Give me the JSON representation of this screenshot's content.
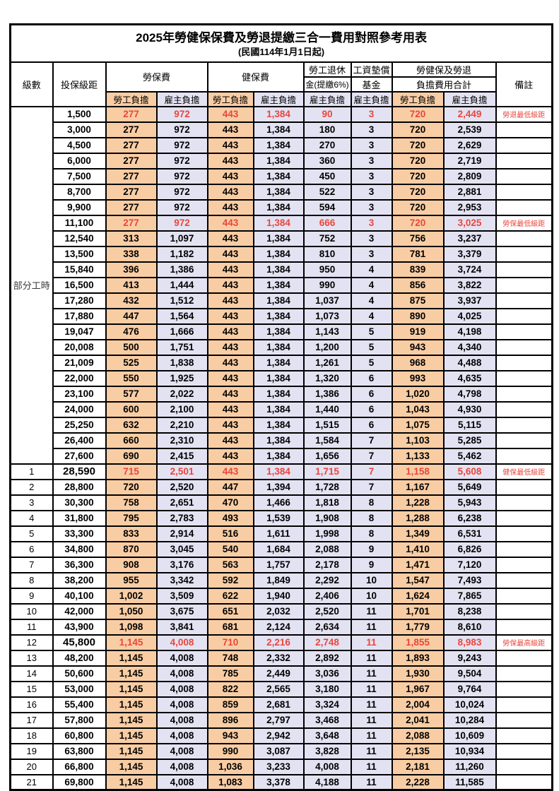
{
  "title": "2025年勞健保保費及勞退提繳三合一費用對照參考用表",
  "subtitle": "(民國114年1月1日起)",
  "columns": {
    "level": "級數",
    "bracket": "投保級距",
    "labor_insurance": "勞保費",
    "health_insurance": "健保費",
    "pension_line1": "勞工退休",
    "pension_line2": "金(提繳6%)",
    "wage_fund_line1": "工資墊償",
    "wage_fund_line2": "基金",
    "total_line1": "勞健保及勞退",
    "total_line2": "負擔費用合計",
    "remark": "備註",
    "employee_share": "勞工負擔",
    "employer_share": "雇主負擔"
  },
  "part_time_label": "部分工時",
  "part_time_rowspan": 23,
  "colors": {
    "employee_bg": "#F9CDA4",
    "employer_bg": "#E3E2F2",
    "highlight_red": "#E8463C",
    "border": "#000000"
  },
  "rows": [
    {
      "level": "",
      "bracket": "1,500",
      "values": [
        "277",
        "972",
        "443",
        "1,384",
        "90",
        "3",
        "720",
        "2,449"
      ],
      "note": "勞退最低級距",
      "red": true,
      "bold": false
    },
    {
      "level": "",
      "bracket": "3,000",
      "values": [
        "277",
        "972",
        "443",
        "1,384",
        "180",
        "3",
        "720",
        "2,539"
      ],
      "note": "",
      "red": false,
      "bold": false
    },
    {
      "level": "",
      "bracket": "4,500",
      "values": [
        "277",
        "972",
        "443",
        "1,384",
        "270",
        "3",
        "720",
        "2,629"
      ],
      "note": "",
      "red": false,
      "bold": false
    },
    {
      "level": "",
      "bracket": "6,000",
      "values": [
        "277",
        "972",
        "443",
        "1,384",
        "360",
        "3",
        "720",
        "2,719"
      ],
      "note": "",
      "red": false,
      "bold": false
    },
    {
      "level": "",
      "bracket": "7,500",
      "values": [
        "277",
        "972",
        "443",
        "1,384",
        "450",
        "3",
        "720",
        "2,809"
      ],
      "note": "",
      "red": false,
      "bold": false
    },
    {
      "level": "",
      "bracket": "8,700",
      "values": [
        "277",
        "972",
        "443",
        "1,384",
        "522",
        "3",
        "720",
        "2,881"
      ],
      "note": "",
      "red": false,
      "bold": false
    },
    {
      "level": "",
      "bracket": "9,900",
      "values": [
        "277",
        "972",
        "443",
        "1,384",
        "594",
        "3",
        "720",
        "2,953"
      ],
      "note": "",
      "red": false,
      "bold": false
    },
    {
      "level": "",
      "bracket": "11,100",
      "values": [
        "277",
        "972",
        "443",
        "1,384",
        "666",
        "3",
        "720",
        "3,025"
      ],
      "note": "勞保最低級距",
      "red": true,
      "bold": false
    },
    {
      "level": "",
      "bracket": "12,540",
      "values": [
        "313",
        "1,097",
        "443",
        "1,384",
        "752",
        "3",
        "756",
        "3,237"
      ],
      "note": "",
      "red": false,
      "bold": false
    },
    {
      "level": "",
      "bracket": "13,500",
      "values": [
        "338",
        "1,182",
        "443",
        "1,384",
        "810",
        "3",
        "781",
        "3,379"
      ],
      "note": "",
      "red": false,
      "bold": false
    },
    {
      "level": "",
      "bracket": "15,840",
      "values": [
        "396",
        "1,386",
        "443",
        "1,384",
        "950",
        "4",
        "839",
        "3,724"
      ],
      "note": "",
      "red": false,
      "bold": false
    },
    {
      "level": "",
      "bracket": "16,500",
      "values": [
        "413",
        "1,444",
        "443",
        "1,384",
        "990",
        "4",
        "856",
        "3,822"
      ],
      "note": "",
      "red": false,
      "bold": false
    },
    {
      "level": "",
      "bracket": "17,280",
      "values": [
        "432",
        "1,512",
        "443",
        "1,384",
        "1,037",
        "4",
        "875",
        "3,937"
      ],
      "note": "",
      "red": false,
      "bold": false
    },
    {
      "level": "",
      "bracket": "17,880",
      "values": [
        "447",
        "1,564",
        "443",
        "1,384",
        "1,073",
        "4",
        "890",
        "4,025"
      ],
      "note": "",
      "red": false,
      "bold": false
    },
    {
      "level": "",
      "bracket": "19,047",
      "values": [
        "476",
        "1,666",
        "443",
        "1,384",
        "1,143",
        "5",
        "919",
        "4,198"
      ],
      "note": "",
      "red": false,
      "bold": false
    },
    {
      "level": "",
      "bracket": "20,008",
      "values": [
        "500",
        "1,751",
        "443",
        "1,384",
        "1,200",
        "5",
        "943",
        "4,340"
      ],
      "note": "",
      "red": false,
      "bold": false
    },
    {
      "level": "",
      "bracket": "21,009",
      "values": [
        "525",
        "1,838",
        "443",
        "1,384",
        "1,261",
        "5",
        "968",
        "4,488"
      ],
      "note": "",
      "red": false,
      "bold": false
    },
    {
      "level": "",
      "bracket": "22,000",
      "values": [
        "550",
        "1,925",
        "443",
        "1,384",
        "1,320",
        "6",
        "993",
        "4,635"
      ],
      "note": "",
      "red": false,
      "bold": false
    },
    {
      "level": "",
      "bracket": "23,100",
      "values": [
        "577",
        "2,022",
        "443",
        "1,384",
        "1,386",
        "6",
        "1,020",
        "4,798"
      ],
      "note": "",
      "red": false,
      "bold": false
    },
    {
      "level": "",
      "bracket": "24,000",
      "values": [
        "600",
        "2,100",
        "443",
        "1,384",
        "1,440",
        "6",
        "1,043",
        "4,930"
      ],
      "note": "",
      "red": false,
      "bold": false
    },
    {
      "level": "",
      "bracket": "25,250",
      "values": [
        "632",
        "2,210",
        "443",
        "1,384",
        "1,515",
        "6",
        "1,075",
        "5,115"
      ],
      "note": "",
      "red": false,
      "bold": false
    },
    {
      "level": "",
      "bracket": "26,400",
      "values": [
        "660",
        "2,310",
        "443",
        "1,384",
        "1,584",
        "7",
        "1,103",
        "5,285"
      ],
      "note": "",
      "red": false,
      "bold": false
    },
    {
      "level": "",
      "bracket": "27,600",
      "values": [
        "690",
        "2,415",
        "443",
        "1,384",
        "1,656",
        "7",
        "1,133",
        "5,462"
      ],
      "note": "",
      "red": false,
      "bold": false
    },
    {
      "level": "1",
      "bracket": "28,590",
      "values": [
        "715",
        "2,501",
        "443",
        "1,384",
        "1,715",
        "7",
        "1,158",
        "5,608"
      ],
      "note": "健保最低級距",
      "red": true,
      "bold": true
    },
    {
      "level": "2",
      "bracket": "28,800",
      "values": [
        "720",
        "2,520",
        "447",
        "1,394",
        "1,728",
        "7",
        "1,167",
        "5,649"
      ],
      "note": "",
      "red": false,
      "bold": false
    },
    {
      "level": "3",
      "bracket": "30,300",
      "values": [
        "758",
        "2,651",
        "470",
        "1,466",
        "1,818",
        "8",
        "1,228",
        "5,943"
      ],
      "note": "",
      "red": false,
      "bold": false
    },
    {
      "level": "4",
      "bracket": "31,800",
      "values": [
        "795",
        "2,783",
        "493",
        "1,539",
        "1,908",
        "8",
        "1,288",
        "6,238"
      ],
      "note": "",
      "red": false,
      "bold": false
    },
    {
      "level": "5",
      "bracket": "33,300",
      "values": [
        "833",
        "2,914",
        "516",
        "1,611",
        "1,998",
        "8",
        "1,349",
        "6,531"
      ],
      "note": "",
      "red": false,
      "bold": false
    },
    {
      "level": "6",
      "bracket": "34,800",
      "values": [
        "870",
        "3,045",
        "540",
        "1,684",
        "2,088",
        "9",
        "1,410",
        "6,826"
      ],
      "note": "",
      "red": false,
      "bold": false
    },
    {
      "level": "7",
      "bracket": "36,300",
      "values": [
        "908",
        "3,176",
        "563",
        "1,757",
        "2,178",
        "9",
        "1,471",
        "7,120"
      ],
      "note": "",
      "red": false,
      "bold": false
    },
    {
      "level": "8",
      "bracket": "38,200",
      "values": [
        "955",
        "3,342",
        "592",
        "1,849",
        "2,292",
        "10",
        "1,547",
        "7,493"
      ],
      "note": "",
      "red": false,
      "bold": false
    },
    {
      "level": "9",
      "bracket": "40,100",
      "values": [
        "1,002",
        "3,509",
        "622",
        "1,940",
        "2,406",
        "10",
        "1,624",
        "7,865"
      ],
      "note": "",
      "red": false,
      "bold": false
    },
    {
      "level": "10",
      "bracket": "42,000",
      "values": [
        "1,050",
        "3,675",
        "651",
        "2,032",
        "2,520",
        "11",
        "1,701",
        "8,238"
      ],
      "note": "",
      "red": false,
      "bold": false
    },
    {
      "level": "11",
      "bracket": "43,900",
      "values": [
        "1,098",
        "3,841",
        "681",
        "2,124",
        "2,634",
        "11",
        "1,779",
        "8,610"
      ],
      "note": "",
      "red": false,
      "bold": false
    },
    {
      "level": "12",
      "bracket": "45,800",
      "values": [
        "1,145",
        "4,008",
        "710",
        "2,216",
        "2,748",
        "11",
        "1,855",
        "8,983"
      ],
      "note": "勞保最高級距",
      "red": true,
      "bold": true
    },
    {
      "level": "13",
      "bracket": "48,200",
      "values": [
        "1,145",
        "4,008",
        "748",
        "2,332",
        "2,892",
        "11",
        "1,893",
        "9,243"
      ],
      "note": "",
      "red": false,
      "bold": false
    },
    {
      "level": "14",
      "bracket": "50,600",
      "values": [
        "1,145",
        "4,008",
        "785",
        "2,449",
        "3,036",
        "11",
        "1,930",
        "9,504"
      ],
      "note": "",
      "red": false,
      "bold": false
    },
    {
      "level": "15",
      "bracket": "53,000",
      "values": [
        "1,145",
        "4,008",
        "822",
        "2,565",
        "3,180",
        "11",
        "1,967",
        "9,764"
      ],
      "note": "",
      "red": false,
      "bold": false
    },
    {
      "level": "16",
      "bracket": "55,400",
      "values": [
        "1,145",
        "4,008",
        "859",
        "2,681",
        "3,324",
        "11",
        "2,004",
        "10,024"
      ],
      "note": "",
      "red": false,
      "bold": false
    },
    {
      "level": "17",
      "bracket": "57,800",
      "values": [
        "1,145",
        "4,008",
        "896",
        "2,797",
        "3,468",
        "11",
        "2,041",
        "10,284"
      ],
      "note": "",
      "red": false,
      "bold": false
    },
    {
      "level": "18",
      "bracket": "60,800",
      "values": [
        "1,145",
        "4,008",
        "943",
        "2,942",
        "3,648",
        "11",
        "2,088",
        "10,609"
      ],
      "note": "",
      "red": false,
      "bold": false
    },
    {
      "level": "19",
      "bracket": "63,800",
      "values": [
        "1,145",
        "4,008",
        "990",
        "3,087",
        "3,828",
        "11",
        "2,135",
        "10,934"
      ],
      "note": "",
      "red": false,
      "bold": false
    },
    {
      "level": "20",
      "bracket": "66,800",
      "values": [
        "1,145",
        "4,008",
        "1,036",
        "3,233",
        "4,008",
        "11",
        "2,181",
        "11,260"
      ],
      "note": "",
      "red": false,
      "bold": false
    },
    {
      "level": "21",
      "bracket": "69,800",
      "values": [
        "1,145",
        "4,008",
        "1,083",
        "3,378",
        "4,188",
        "11",
        "2,228",
        "11,585"
      ],
      "note": "",
      "red": false,
      "bold": false
    }
  ]
}
